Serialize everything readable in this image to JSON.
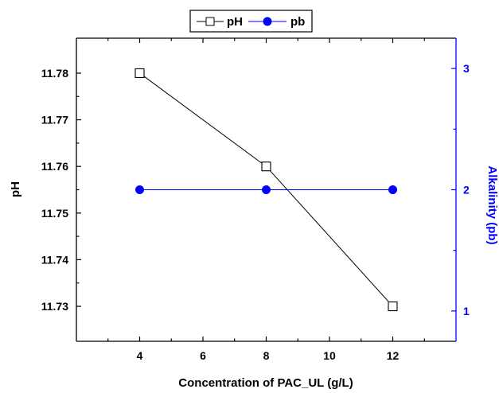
{
  "chart_data": {
    "type": "line",
    "xlabel": "Concentration of PAC_UL (g/L)",
    "ylabel_left": "pH",
    "ylabel_right": "Alkalinity (pb)",
    "x_ticks": [
      4,
      6,
      8,
      10,
      12
    ],
    "xlim": [
      2,
      14
    ],
    "ylim_left": [
      11.7225,
      11.7875
    ],
    "ylim_right": [
      0.75,
      3.25
    ],
    "y_left_ticks": [
      "11.73",
      "11.74",
      "11.75",
      "11.76",
      "11.77",
      "11.78"
    ],
    "y_right_ticks": [
      "1",
      "2",
      "3"
    ],
    "legend_position": "top-center",
    "grid": false,
    "series": [
      {
        "name": "pH",
        "axis": "left",
        "marker": "open-square",
        "color": "#000000",
        "x": [
          4,
          8,
          12
        ],
        "y": [
          11.78,
          11.76,
          11.73
        ]
      },
      {
        "name": "pb",
        "axis": "right",
        "marker": "filled-circle",
        "color": "#0000ff",
        "x": [
          4,
          8,
          12
        ],
        "y": [
          2,
          2,
          2
        ]
      }
    ]
  }
}
